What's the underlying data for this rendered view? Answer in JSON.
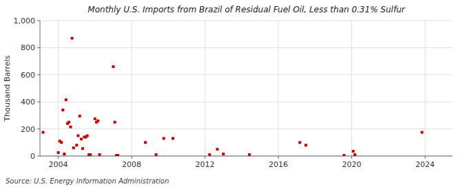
{
  "chart_data": {
    "type": "scatter",
    "title": "Monthly U.S. Imports from Brazil of Residual Fuel Oil, Less than 0.31% Sulfur",
    "ylabel": "Thousand Barrels",
    "source": "Source: U.S. Energy Information Administration",
    "color": "#cc0000",
    "marker": "square",
    "grid": true,
    "xlim": [
      2003.0,
      2025.5
    ],
    "ylim": [
      0,
      1000
    ],
    "xticks": [
      2004,
      2008,
      2012,
      2016,
      2020,
      2024
    ],
    "yticks": [
      0,
      200,
      400,
      600,
      800,
      {
        "value": 1000,
        "label": "1,000"
      }
    ],
    "x": [
      2003.17,
      2004.0,
      2004.08,
      2004.17,
      2004.25,
      2004.33,
      2004.42,
      2004.5,
      2004.58,
      2004.67,
      2004.75,
      2004.83,
      2005.0,
      2005.08,
      2005.17,
      2005.25,
      2005.33,
      2005.42,
      2005.5,
      2005.58,
      2005.67,
      2005.75,
      2006.0,
      2006.08,
      2006.17,
      2006.25,
      2007.0,
      2007.08,
      2007.17,
      2007.25,
      2008.75,
      2009.33,
      2009.75,
      2010.25,
      2012.25,
      2012.67,
      2013.0,
      2014.42,
      2017.17,
      2017.5,
      2019.58,
      2020.08,
      2020.17,
      2023.83
    ],
    "values": [
      175,
      25,
      110,
      100,
      340,
      15,
      415,
      240,
      250,
      215,
      870,
      60,
      80,
      150,
      295,
      125,
      55,
      140,
      140,
      150,
      10,
      10,
      275,
      250,
      260,
      10,
      660,
      250,
      5,
      5,
      100,
      10,
      130,
      130,
      10,
      50,
      15,
      10,
      100,
      80,
      5,
      35,
      10,
      175
    ]
  }
}
